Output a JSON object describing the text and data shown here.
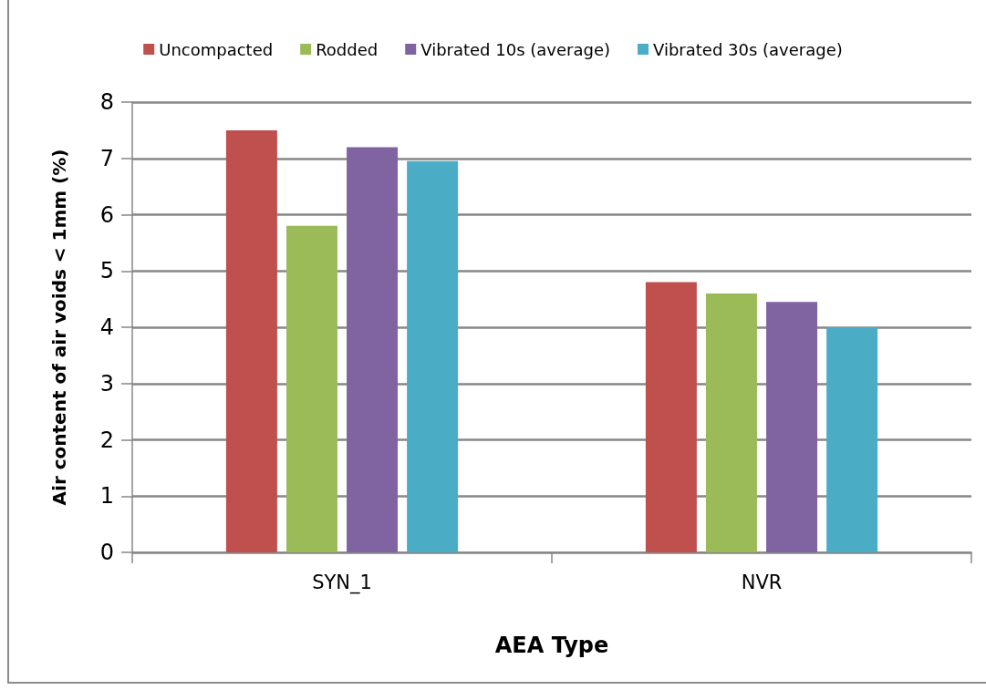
{
  "chart_data": {
    "type": "bar",
    "xlabel": "AEA Type",
    "ylabel": "Air content of air voids < 1mm (%)",
    "categories": [
      "SYN_1",
      "NVR"
    ],
    "series": [
      {
        "name": "Uncompacted",
        "color": "#c0504d",
        "values": [
          7.5,
          4.8
        ]
      },
      {
        "name": "Rodded",
        "color": "#9bbb59",
        "values": [
          5.8,
          4.6
        ]
      },
      {
        "name": "Vibrated 10s (average)",
        "color": "#8064a2",
        "values": [
          7.2,
          4.45
        ]
      },
      {
        "name": "Vibrated 30s (average)",
        "color": "#4bacc6",
        "values": [
          6.95,
          4.0
        ]
      }
    ],
    "ylim": [
      0,
      8
    ],
    "yticks": [
      0,
      1,
      2,
      3,
      4,
      5,
      6,
      7,
      8
    ],
    "grid": "y",
    "legend": "top"
  }
}
